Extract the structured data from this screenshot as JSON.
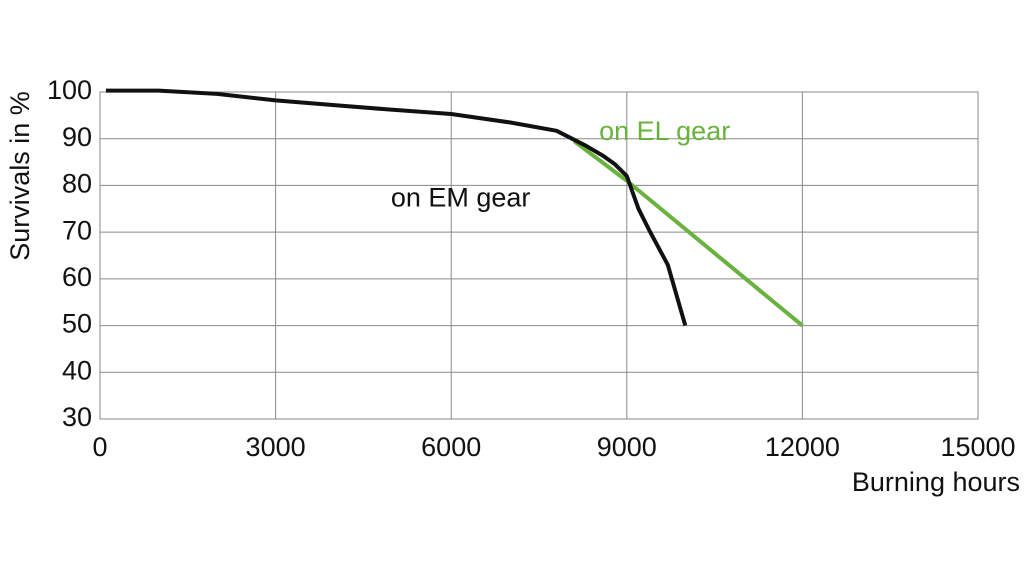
{
  "chart_data": {
    "type": "line",
    "x_label": "Burning hours",
    "y_label": "Survivals in %",
    "xlim": [
      0,
      15000
    ],
    "xticks": [
      0,
      3000,
      6000,
      9000,
      12000,
      15000
    ],
    "ylim": [
      30,
      100
    ],
    "yticks": [
      30,
      40,
      50,
      60,
      70,
      80,
      90,
      100
    ],
    "grid": true,
    "series": [
      {
        "name": "on EL gear",
        "color": "#6ab23e",
        "x": [
          8100,
          9000,
          12000
        ],
        "values": [
          89.5,
          81,
          50
        ]
      },
      {
        "name": "on EM gear",
        "color": "#111111",
        "x": [
          100,
          1000,
          2000,
          3000,
          4000,
          5000,
          6000,
          7000,
          7800,
          8300,
          8600,
          8800,
          9000,
          9200,
          9400,
          9700,
          10000
        ],
        "values": [
          100.3,
          100.3,
          99.6,
          98.2,
          97.2,
          96.2,
          95.3,
          93.5,
          91.7,
          88.5,
          86.3,
          84.5,
          82,
          75,
          70,
          63,
          50
        ]
      }
    ]
  }
}
